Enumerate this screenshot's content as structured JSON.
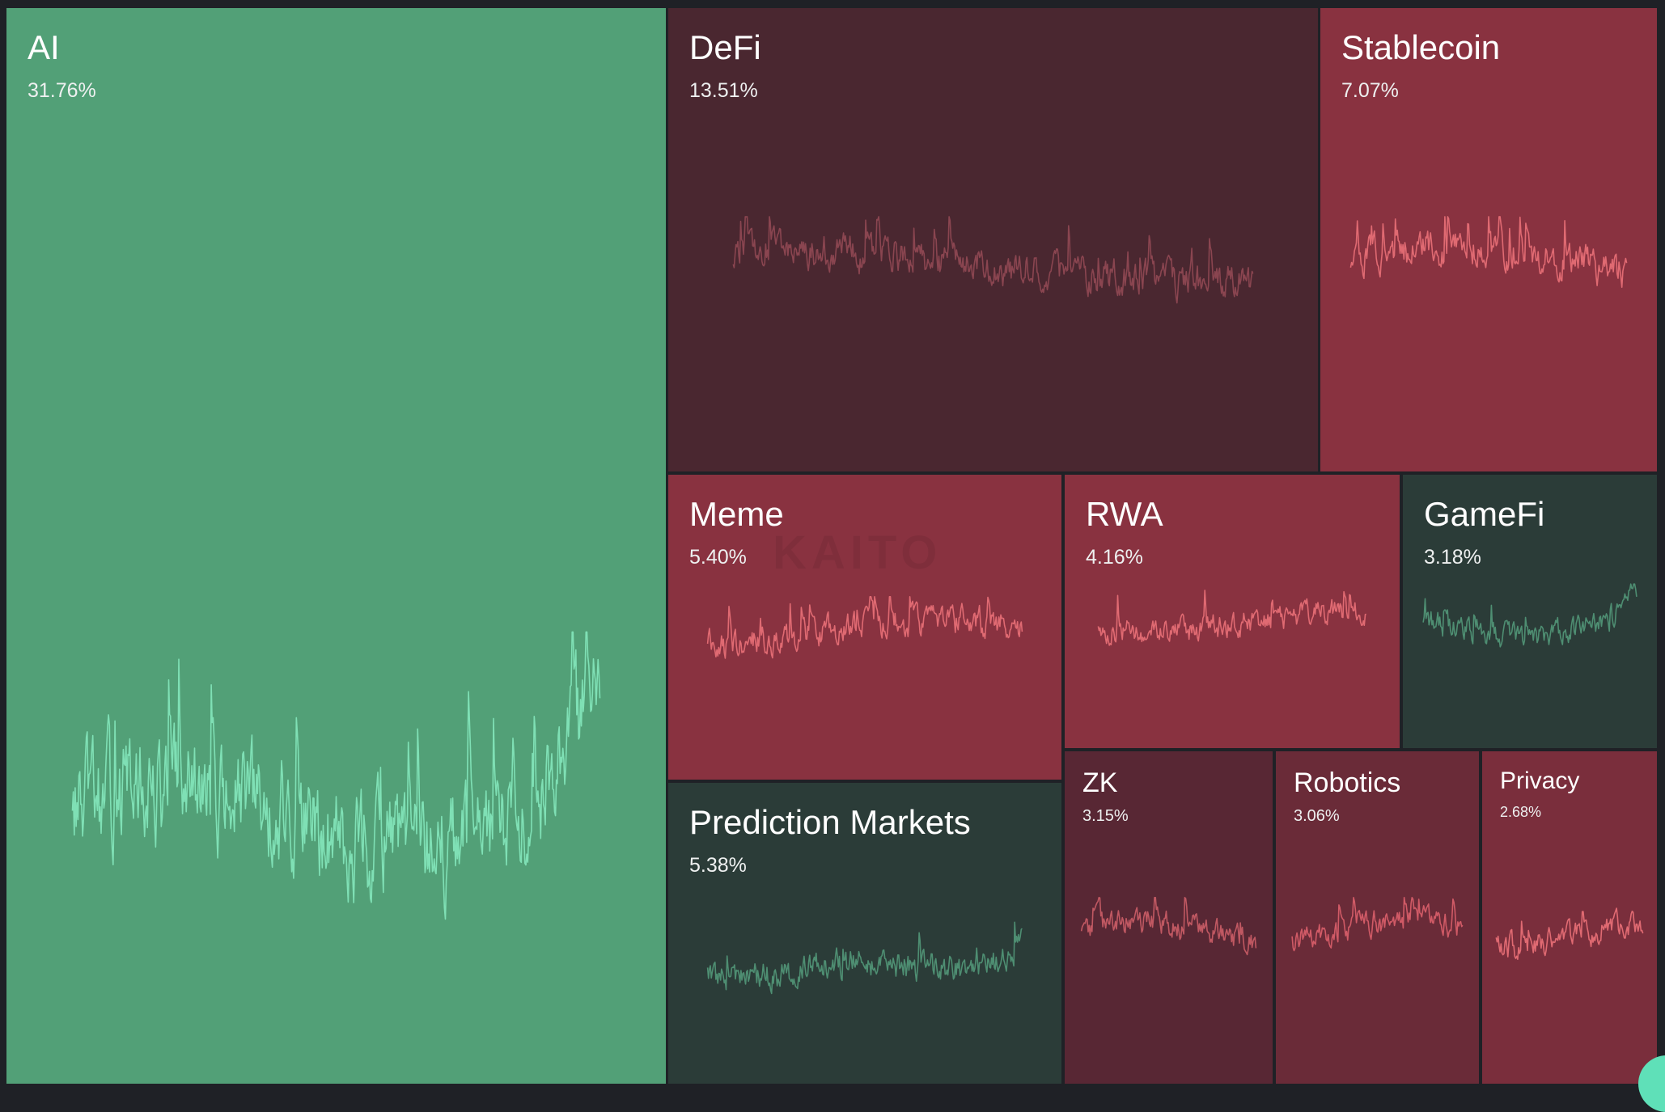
{
  "watermark": "KAITO",
  "colors": {
    "background": "#1f2126",
    "strong_green": "#52a077",
    "dark_green": "#2b3c38",
    "dark_maroon": "#4a2730",
    "mid_red": "#6a2b38",
    "red": "#893240",
    "green_line": "#7fe0b5",
    "muted_green_line": "#4e8e72",
    "red_line": "#e06a72",
    "muted_red_line": "#8a4550"
  },
  "chart_data": {
    "type": "treemap",
    "metric": "share_percent",
    "tiles": [
      {
        "name": "AI",
        "value": 31.76,
        "label": "31.76%",
        "trend": "up",
        "color": "#52a077",
        "line": "#7fe0b5"
      },
      {
        "name": "DeFi",
        "value": 13.51,
        "label": "13.51%",
        "trend": "down",
        "color": "#4a2730",
        "line": "#8a4550"
      },
      {
        "name": "Stablecoin",
        "value": 7.07,
        "label": "7.07%",
        "trend": "down",
        "color": "#893240",
        "line": "#e06a72"
      },
      {
        "name": "Meme",
        "value": 5.4,
        "label": "5.40%",
        "trend": "down",
        "color": "#893240",
        "line": "#e06a72"
      },
      {
        "name": "RWA",
        "value": 4.16,
        "label": "4.16%",
        "trend": "down",
        "color": "#893240",
        "line": "#e06a72"
      },
      {
        "name": "GameFi",
        "value": 3.18,
        "label": "3.18%",
        "trend": "up",
        "color": "#2b3c38",
        "line": "#4e8e72"
      },
      {
        "name": "Prediction Markets",
        "value": 5.38,
        "label": "5.38%",
        "trend": "up",
        "color": "#2b3c38",
        "line": "#4e8e72"
      },
      {
        "name": "ZK",
        "value": 3.15,
        "label": "3.15%",
        "trend": "down",
        "color": "#582734",
        "line": "#c05862"
      },
      {
        "name": "Robotics",
        "value": 3.06,
        "label": "3.06%",
        "trend": "down",
        "color": "#6a2b38",
        "line": "#d05a66"
      },
      {
        "name": "Privacy",
        "value": 2.68,
        "label": "2.68%",
        "trend": "down",
        "color": "#7a2e3c",
        "line": "#e06a72"
      }
    ]
  }
}
